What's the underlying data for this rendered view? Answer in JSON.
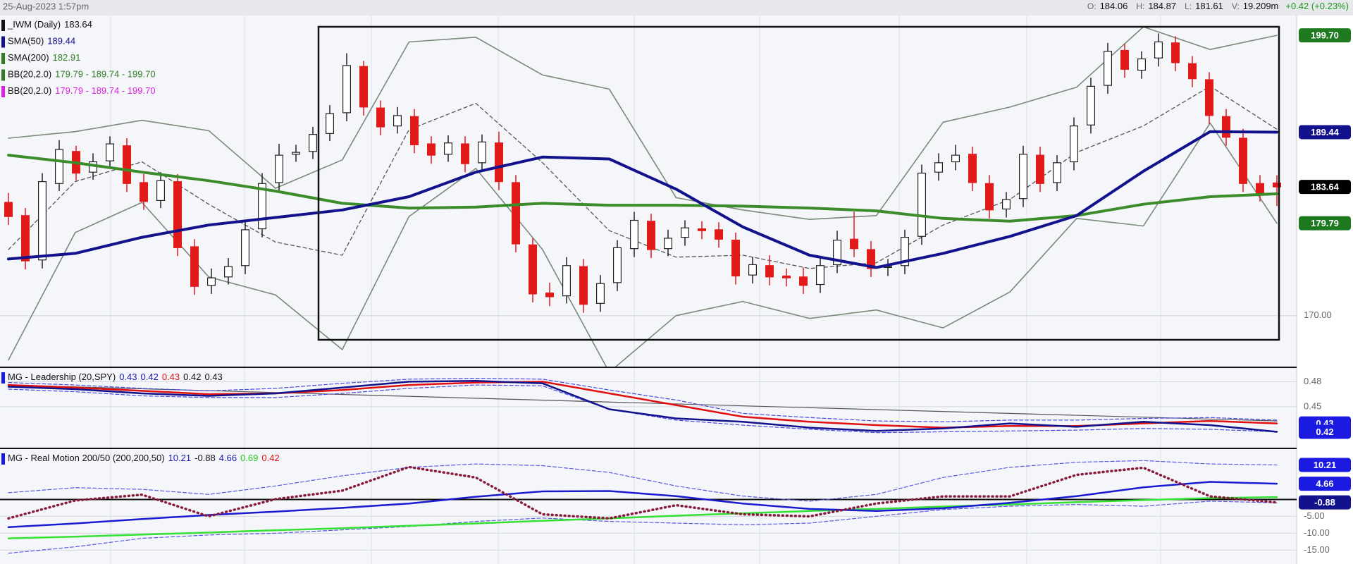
{
  "header": {
    "date": "25-Aug-2023 1:57pm",
    "fields": [
      {
        "label": "O:",
        "value": 184.06
      },
      {
        "label": "H:",
        "value": 184.87
      },
      {
        "label": "L:",
        "value": 181.61
      },
      {
        "label": "V:",
        "value": "19.209m"
      }
    ],
    "change": "+0.42 (+0.23%)"
  },
  "chart_data": [
    {
      "type": "candlestick",
      "open": [
        182.0,
        180.6,
        175.9,
        184.0,
        187.4,
        185.2,
        186.4,
        188.0,
        184.1,
        182.2,
        184.2,
        177.3,
        173.2,
        174.1,
        175.3,
        179.2,
        184.1,
        187.1,
        187.4,
        189.3,
        191.5,
        196.4,
        192.0,
        190.1,
        191.1,
        188.2,
        187.1,
        188.2,
        186.2,
        188.3,
        184.1,
        177.5,
        172.4,
        172.1,
        175.2,
        171.3,
        173.5,
        177.1,
        180.0,
        177.1,
        178.3,
        179.2,
        179.1,
        178.0,
        174.3,
        175.3,
        174.2,
        174.1,
        173.3,
        175.4,
        178.1,
        177.0,
        175.1,
        175.3,
        178.4,
        185.2,
        186.3,
        187.1,
        184.0,
        181.3,
        182.4,
        187.0,
        184.1,
        186.3,
        190.2,
        194.4,
        198.1,
        196.0,
        197.3,
        198.9,
        196.7,
        195.0,
        191.1,
        188.8,
        184.0,
        184.06
      ],
      "high": [
        183.0,
        181.4,
        185.1,
        188.6,
        188.0,
        187.2,
        189.0,
        188.8,
        185.0,
        185.2,
        185.0,
        178.1,
        175.0,
        176.1,
        180.0,
        185.1,
        188.2,
        188.1,
        190.0,
        192.3,
        197.8,
        197.0,
        192.8,
        192.1,
        191.9,
        189.0,
        189.1,
        189.0,
        189.2,
        189.5,
        184.9,
        178.2,
        173.5,
        176.2,
        176.0,
        174.3,
        178.0,
        181.0,
        180.8,
        179.1,
        180.1,
        180.0,
        179.9,
        178.8,
        176.2,
        176.4,
        175.0,
        175.1,
        176.2,
        179.0,
        181.0,
        177.9,
        176.0,
        179.1,
        186.0,
        187.2,
        188.1,
        187.9,
        184.9,
        183.1,
        188.0,
        187.9,
        187.0,
        191.0,
        195.2,
        198.9,
        198.8,
        198.0,
        199.9,
        199.6,
        197.5,
        195.8,
        191.9,
        189.8,
        184.9,
        184.87
      ],
      "low": [
        179.6,
        174.9,
        175.0,
        183.2,
        184.3,
        184.4,
        185.6,
        183.1,
        181.2,
        181.4,
        176.3,
        172.2,
        172.3,
        173.3,
        174.4,
        178.3,
        183.2,
        186.3,
        186.6,
        188.5,
        190.6,
        191.2,
        189.1,
        189.3,
        187.2,
        186.1,
        186.3,
        185.2,
        185.4,
        183.3,
        176.7,
        171.4,
        171.0,
        171.3,
        170.3,
        170.4,
        172.6,
        176.2,
        176.1,
        176.3,
        177.4,
        178.1,
        177.2,
        173.3,
        173.4,
        173.2,
        173.1,
        172.3,
        172.4,
        174.5,
        176.2,
        174.1,
        174.2,
        174.4,
        177.5,
        184.3,
        185.4,
        183.2,
        180.3,
        180.4,
        181.5,
        183.1,
        183.2,
        185.4,
        189.3,
        193.5,
        195.2,
        195.1,
        196.4,
        195.9,
        194.2,
        190.3,
        188.0,
        183.1,
        182.1,
        181.61
      ],
      "close": [
        180.5,
        175.8,
        184.2,
        187.6,
        185.1,
        186.3,
        188.2,
        184.0,
        182.1,
        184.3,
        177.2,
        173.1,
        174.0,
        175.2,
        179.1,
        184.0,
        187.0,
        187.3,
        189.2,
        191.4,
        196.5,
        192.1,
        190.0,
        191.2,
        188.1,
        187.0,
        188.3,
        186.1,
        188.4,
        184.2,
        177.6,
        172.3,
        172.0,
        175.3,
        171.2,
        173.4,
        177.2,
        180.1,
        177.0,
        178.2,
        179.3,
        179.0,
        178.1,
        174.2,
        175.4,
        174.1,
        174.0,
        173.2,
        175.3,
        178.0,
        177.1,
        175.0,
        175.2,
        178.3,
        185.1,
        186.2,
        187.0,
        184.1,
        181.2,
        182.3,
        187.1,
        184.0,
        186.2,
        190.1,
        194.3,
        198.0,
        196.1,
        197.2,
        199.0,
        196.8,
        195.1,
        191.2,
        188.9,
        184.0,
        183.0,
        183.64
      ],
      "up_color": "#ffffff",
      "down_color": "#e31a1a",
      "series": [
        {
          "color": "#7a8a7a",
          "width": 1.6,
          "values": [
            188.8,
            189.5,
            190.7,
            189.6,
            183.5,
            186.5,
            199.0,
            199.5,
            195.5,
            194.0,
            182.5,
            181.2,
            180.2,
            180.6,
            190.5,
            192.1,
            194.2,
            200.6,
            198.2,
            199.7
          ]
        },
        {
          "color": "#7a8a7a",
          "width": 1.6,
          "values": [
            165.3,
            178.8,
            182.0,
            174.1,
            172.2,
            166.4,
            180.5,
            185.6,
            177.0,
            164.0,
            170.0,
            171.5,
            169.7,
            170.6,
            168.7,
            172.5,
            180.3,
            179.5,
            190.4,
            179.79
          ]
        },
        {
          "color": "#555555",
          "width": 1.3,
          "dash": "5 4",
          "values": [
            177.0,
            184.2,
            186.3,
            181.8,
            177.8,
            176.4,
            189.7,
            192.5,
            186.2,
            179.0,
            176.2,
            176.4,
            175.0,
            175.6,
            179.6,
            182.3,
            187.3,
            190.1,
            194.3,
            189.74
          ]
        },
        {
          "color": "#3c8c2c",
          "width": 4,
          "values": [
            187.0,
            186.2,
            185.2,
            184.3,
            183.2,
            181.9,
            181.4,
            181.5,
            181.9,
            181.7,
            181.7,
            181.6,
            181.4,
            181.1,
            180.3,
            180.0,
            180.6,
            181.8,
            182.6,
            182.91
          ]
        },
        {
          "color": "#12128c",
          "width": 4,
          "values": [
            176.0,
            176.6,
            178.3,
            179.6,
            180.4,
            181.2,
            182.6,
            185.2,
            186.8,
            186.6,
            183.4,
            179.4,
            176.4,
            175.1,
            176.6,
            178.4,
            180.6,
            185.3,
            189.5,
            189.44
          ]
        }
      ],
      "legend": [
        {
          "label": "_IWM (Daily)",
          "value": 183.64,
          "color": "#111111"
        },
        {
          "label": "SMA(50)",
          "value": 189.44,
          "color": "#12128c"
        },
        {
          "label": "SMA(200)",
          "value": 182.91,
          "color": "#2e7d22"
        },
        {
          "label": "BB(20,2.0)",
          "text": "179.79 - 189.74 - 199.70",
          "color": "#2e7d22"
        },
        {
          "label": "BB(20,2.0)",
          "text": "179.79 - 189.74 - 199.70",
          "color": "#e020e0"
        }
      ],
      "badges": [
        {
          "value": 199.7,
          "label": "199.70",
          "color": "#1e7a1e"
        },
        {
          "value": 189.44,
          "color": "#12128c"
        },
        {
          "value": 183.64,
          "color": "#000000"
        },
        {
          "value": 179.79,
          "color": "#1e7a1e"
        }
      ],
      "ylim": [
        164.6,
        201.8
      ],
      "yticks": [
        {
          "value": 170,
          "label": "170.00"
        }
      ]
    },
    {
      "type": "line",
      "title": "MG - Leadership (20,SPY)",
      "readouts": [
        {
          "value": 0.43,
          "color": "#1a1ab0"
        },
        {
          "value": 0.42,
          "color": "#1a1ab0"
        },
        {
          "value": 0.43,
          "color": "#e01010"
        },
        {
          "value": 0.42,
          "color": "#111111"
        },
        {
          "value": 0.43,
          "color": "#111111"
        }
      ],
      "series": [
        {
          "color": "#555555",
          "width": 1.2,
          "values": [
            0.476,
            0.433
          ]
        },
        {
          "color": "#4a4ae0",
          "width": 1.2,
          "dash": "5 3",
          "values": [
            0.479,
            0.476,
            0.472,
            0.469,
            0.472,
            0.478,
            0.483,
            0.484,
            0.483,
            0.47,
            0.458,
            0.442,
            0.437,
            0.433,
            0.432,
            0.434,
            0.434,
            0.436,
            0.437,
            0.434
          ]
        },
        {
          "color": "#4a4ae0",
          "width": 1.2,
          "dash": "5 3",
          "values": [
            0.471,
            0.468,
            0.463,
            0.461,
            0.461,
            0.466,
            0.472,
            0.476,
            0.475,
            0.447,
            0.434,
            0.428,
            0.423,
            0.419,
            0.42,
            0.421,
            0.422,
            0.424,
            0.423,
            0.42
          ]
        },
        {
          "color": "#e01010",
          "width": 2.5,
          "values": [
            0.476,
            0.473,
            0.469,
            0.465,
            0.466,
            0.47,
            0.476,
            0.479,
            0.48,
            0.466,
            0.452,
            0.438,
            0.432,
            0.428,
            0.425,
            0.427,
            0.427,
            0.43,
            0.433,
            0.43
          ]
        },
        {
          "color": "#12128c",
          "width": 2.5,
          "values": [
            0.474,
            0.471,
            0.466,
            0.463,
            0.466,
            0.473,
            0.48,
            0.481,
            0.478,
            0.447,
            0.436,
            0.432,
            0.425,
            0.421,
            0.424,
            0.43,
            0.426,
            0.432,
            0.428,
            0.42
          ]
        }
      ],
      "badges": [
        {
          "value": 0.43,
          "color": "#1a1ae0"
        },
        {
          "value": 0.42,
          "color": "#1a1ae0"
        }
      ],
      "ylim": [
        0.401,
        0.4955
      ],
      "yticks": [
        0.48,
        0.45
      ]
    },
    {
      "type": "line",
      "title": "MG - Real Motion 200/50 (200,200,50)",
      "readouts": [
        {
          "value": 10.21,
          "color": "#1a1ab0"
        },
        {
          "value": -0.88,
          "color": "#111111"
        },
        {
          "value": 4.66,
          "color": "#1a1ab0"
        },
        {
          "value": 0.69,
          "color": "#22cc22"
        },
        {
          "value": 0.42,
          "color": "#e01010"
        }
      ],
      "zero_line": true,
      "series": [
        {
          "color": "#5a5ae0",
          "width": 1.2,
          "dash": "5 3",
          "values": [
            2.0,
            3.5,
            3.0,
            1.5,
            4.0,
            7.0,
            9.5,
            10.5,
            10.0,
            8.0,
            4.0,
            1.0,
            -0.5,
            1.5,
            6.5,
            9.5,
            11.0,
            11.5,
            10.5,
            10.21
          ]
        },
        {
          "color": "#5a5ae0",
          "width": 1.2,
          "dash": "5 3",
          "values": [
            -15.9,
            -14.0,
            -11.5,
            -10.5,
            -10.0,
            -9.0,
            -8.0,
            -6.5,
            -5.5,
            -6.5,
            -7.0,
            -7.5,
            -7.0,
            -5.0,
            -3.0,
            -2.0,
            -1.5,
            -2.0,
            -0.5,
            -1.0
          ]
        },
        {
          "color": "#33e033",
          "width": 2.5,
          "values": [
            -11.5,
            -11.0,
            -10.4,
            -9.8,
            -9.1,
            -8.5,
            -7.8,
            -7.1,
            -6.3,
            -5.6,
            -4.8,
            -4.1,
            -3.4,
            -2.8,
            -2.1,
            -1.5,
            -0.8,
            -0.2,
            0.4,
            0.69
          ]
        },
        {
          "color": "#1a1ad0",
          "width": 2.5,
          "values": [
            -8.2,
            -7.1,
            -5.8,
            -4.6,
            -3.6,
            -2.5,
            -1.2,
            0.8,
            2.4,
            2.5,
            1.0,
            -1.2,
            -2.8,
            -3.4,
            -2.6,
            -1.0,
            1.0,
            3.6,
            5.2,
            4.66
          ]
        },
        {
          "color": "#8a1a3a",
          "width": 3.5,
          "dash": "1 5",
          "values": [
            -5.6,
            -0.3,
            1.4,
            -5.0,
            0.1,
            2.6,
            9.6,
            6.5,
            -4.4,
            -5.6,
            -1.7,
            -4.4,
            -5.0,
            -1.2,
            0.9,
            0.9,
            7.3,
            9.4,
            0.9,
            -0.88
          ]
        }
      ],
      "badges": [
        {
          "value": 10.21,
          "color": "#1a1ae0"
        },
        {
          "value": 4.66,
          "color": "#1a1ae0"
        },
        {
          "value": -0.88,
          "color": "#12128c"
        }
      ],
      "ylim": [
        -19.1,
        14.7
      ],
      "yticks": [
        {
          "value": -5,
          "label": "-5.00"
        },
        {
          "value": -10,
          "label": "-10.00"
        },
        {
          "value": -15,
          "label": "-15.00"
        }
      ]
    }
  ]
}
